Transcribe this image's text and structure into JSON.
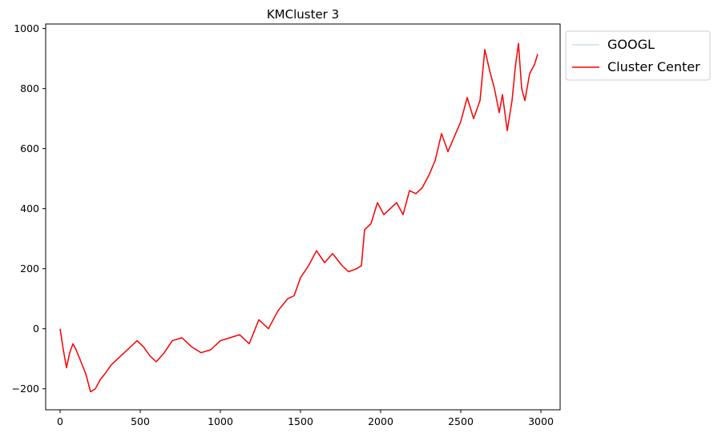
{
  "chart_data": {
    "type": "line",
    "title": "KMCluster 3",
    "xlabel": "",
    "ylabel": "",
    "xlim": [
      -90,
      3120
    ],
    "ylim": [
      -270,
      1015
    ],
    "xticks": [
      0,
      500,
      1000,
      1500,
      2000,
      2500,
      3000
    ],
    "xtick_labels": [
      "0",
      "500",
      "1000",
      "1500",
      "2000",
      "2500",
      "3000"
    ],
    "yticks": [
      -200,
      0,
      200,
      400,
      600,
      800,
      1000
    ],
    "ytick_labels": [
      "−200",
      "0",
      "200",
      "400",
      "600",
      "800",
      "1000"
    ],
    "grid": false,
    "legend": {
      "placement": "outside-top-right",
      "entries": [
        "GOOGL",
        "Cluster Center"
      ]
    },
    "series": [
      {
        "name": "GOOGL",
        "color": "#c6e0ef",
        "x": [
          0,
          20,
          40,
          60,
          80,
          100,
          130,
          160,
          190,
          220,
          250,
          280,
          320,
          360,
          420,
          480,
          520,
          560,
          600,
          650,
          700,
          760,
          820,
          880,
          940,
          1000,
          1060,
          1120,
          1180,
          1240,
          1300,
          1360,
          1420,
          1460,
          1500,
          1550,
          1600,
          1650,
          1700,
          1760,
          1800,
          1850,
          1880,
          1900,
          1940,
          1980,
          2020,
          2060,
          2100,
          2140,
          2180,
          2220,
          2260,
          2300,
          2340,
          2380,
          2420,
          2460,
          2500,
          2540,
          2580,
          2620,
          2650,
          2680,
          2710,
          2740,
          2760,
          2790,
          2820,
          2840,
          2860,
          2880,
          2900,
          2930,
          2960,
          2980
        ],
        "y": [
          0,
          -70,
          -130,
          -80,
          -50,
          -70,
          -110,
          -150,
          -210,
          -200,
          -170,
          -150,
          -120,
          -100,
          -70,
          -40,
          -60,
          -90,
          -110,
          -80,
          -40,
          -30,
          -60,
          -80,
          -70,
          -40,
          -30,
          -20,
          -50,
          30,
          0,
          60,
          100,
          110,
          170,
          210,
          260,
          220,
          250,
          210,
          190,
          200,
          210,
          330,
          350,
          420,
          380,
          400,
          420,
          380,
          460,
          450,
          470,
          510,
          560,
          650,
          590,
          640,
          690,
          770,
          700,
          760,
          930,
          860,
          800,
          720,
          780,
          660,
          760,
          870,
          950,
          800,
          760,
          850,
          880,
          915
        ]
      },
      {
        "name": "Cluster Center",
        "color": "#ff0000",
        "x": [
          0,
          20,
          40,
          60,
          80,
          100,
          130,
          160,
          190,
          220,
          250,
          280,
          320,
          360,
          420,
          480,
          520,
          560,
          600,
          650,
          700,
          760,
          820,
          880,
          940,
          1000,
          1060,
          1120,
          1180,
          1240,
          1300,
          1360,
          1420,
          1460,
          1500,
          1550,
          1600,
          1650,
          1700,
          1760,
          1800,
          1850,
          1880,
          1900,
          1940,
          1980,
          2020,
          2060,
          2100,
          2140,
          2180,
          2220,
          2260,
          2300,
          2340,
          2380,
          2420,
          2460,
          2500,
          2540,
          2580,
          2620,
          2650,
          2680,
          2710,
          2740,
          2760,
          2790,
          2820,
          2840,
          2860,
          2880,
          2900,
          2930,
          2960,
          2980
        ],
        "y": [
          0,
          -70,
          -130,
          -80,
          -50,
          -70,
          -110,
          -150,
          -210,
          -200,
          -170,
          -150,
          -120,
          -100,
          -70,
          -40,
          -60,
          -90,
          -110,
          -80,
          -40,
          -30,
          -60,
          -80,
          -70,
          -40,
          -30,
          -20,
          -50,
          30,
          0,
          60,
          100,
          110,
          170,
          210,
          260,
          220,
          250,
          210,
          190,
          200,
          210,
          330,
          350,
          420,
          380,
          400,
          420,
          380,
          460,
          450,
          470,
          510,
          560,
          650,
          590,
          640,
          690,
          770,
          700,
          760,
          930,
          860,
          800,
          720,
          780,
          660,
          760,
          870,
          950,
          800,
          760,
          850,
          880,
          915
        ]
      }
    ]
  }
}
